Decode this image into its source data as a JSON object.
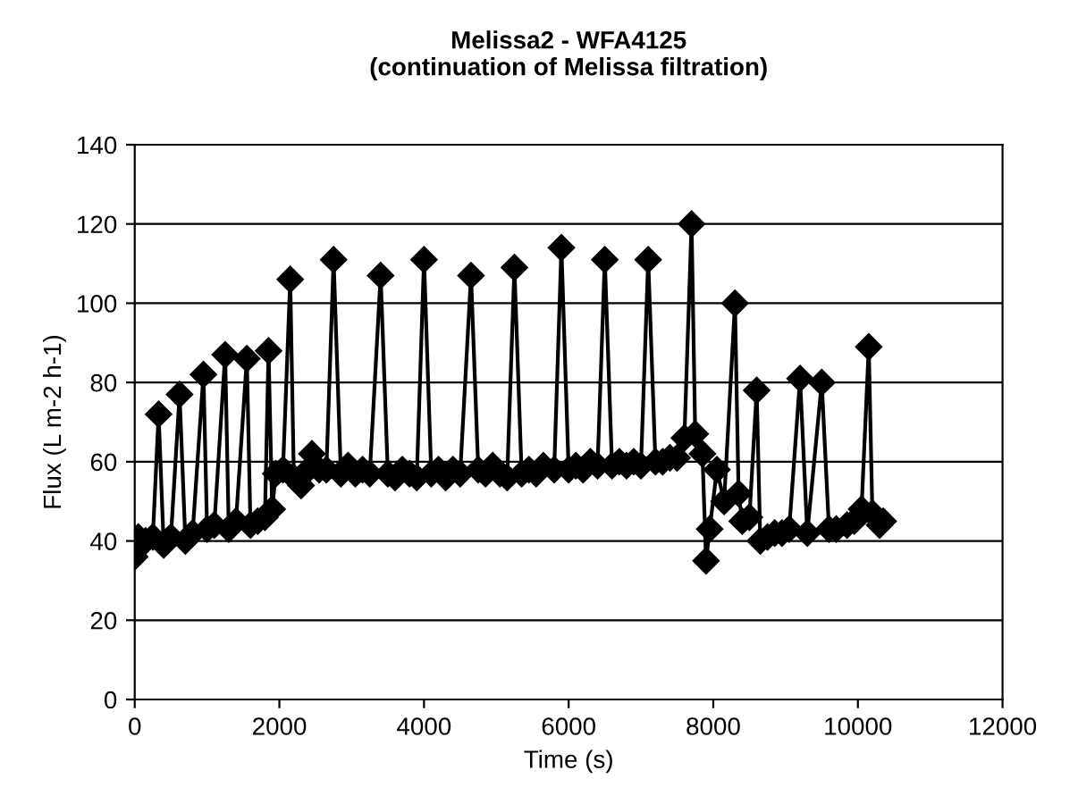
{
  "chart_data": {
    "type": "line",
    "title": "Melissa2 - WFA4125\n(continuation of Melissa filtration)",
    "xlabel": "Time (s)",
    "ylabel": "Flux (L m-2 h-1)",
    "xlim": [
      0,
      12000
    ],
    "xticks": [
      0,
      2000,
      4000,
      6000,
      8000,
      10000,
      12000
    ],
    "ylim": [
      0,
      140
    ],
    "yticks": [
      0,
      20,
      40,
      60,
      80,
      100,
      120,
      140
    ],
    "grid": "y",
    "marker": "diamond",
    "line_style": "solid",
    "series": [
      {
        "color": "#000000",
        "x": [
          0,
          50,
          150,
          250,
          330,
          400,
          500,
          620,
          700,
          800,
          950,
          1000,
          1100,
          1250,
          1300,
          1400,
          1550,
          1600,
          1700,
          1800,
          1850,
          1900,
          1950,
          2050,
          2150,
          2200,
          2300,
          2400,
          2450,
          2550,
          2650,
          2750,
          2850,
          2950,
          3050,
          3150,
          3250,
          3400,
          3500,
          3600,
          3700,
          3800,
          3900,
          4000,
          4100,
          4200,
          4300,
          4400,
          4500,
          4650,
          4750,
          4850,
          4950,
          5050,
          5150,
          5250,
          5350,
          5450,
          5550,
          5650,
          5800,
          5900,
          6000,
          6100,
          6200,
          6300,
          6400,
          6500,
          6600,
          6700,
          6800,
          6900,
          7000,
          7100,
          7200,
          7300,
          7400,
          7500,
          7600,
          7700,
          7750,
          7850,
          7900,
          7950,
          8050,
          8150,
          8300,
          8350,
          8400,
          8500,
          8600,
          8650,
          8750,
          8850,
          8950,
          9050,
          9200,
          9300,
          9500,
          9600,
          9700,
          9850,
          9950,
          10050,
          10150,
          10200,
          10300,
          10350
        ],
        "values": [
          36,
          41,
          40,
          41,
          72,
          39,
          41,
          77,
          40,
          42,
          82,
          43,
          44,
          87,
          43,
          45,
          86,
          44,
          45,
          46,
          88,
          48,
          57,
          58,
          106,
          56,
          54,
          58,
          62,
          58,
          58,
          111,
          57,
          59,
          57,
          58,
          57,
          107,
          57,
          56,
          58,
          57,
          56,
          111,
          57,
          58,
          56,
          58,
          57,
          107,
          58,
          57,
          59,
          57,
          56,
          109,
          57,
          58,
          57,
          59,
          58,
          114,
          58,
          59,
          58,
          60,
          59,
          111,
          59,
          60,
          59,
          60,
          59,
          111,
          60,
          60,
          61,
          61,
          66,
          120,
          67,
          62,
          35,
          43,
          58,
          50,
          100,
          52,
          45,
          46,
          78,
          40,
          41,
          42,
          42,
          43,
          81,
          42,
          80,
          43,
          43,
          44,
          45,
          48,
          89,
          47,
          44,
          45
        ]
      }
    ]
  }
}
